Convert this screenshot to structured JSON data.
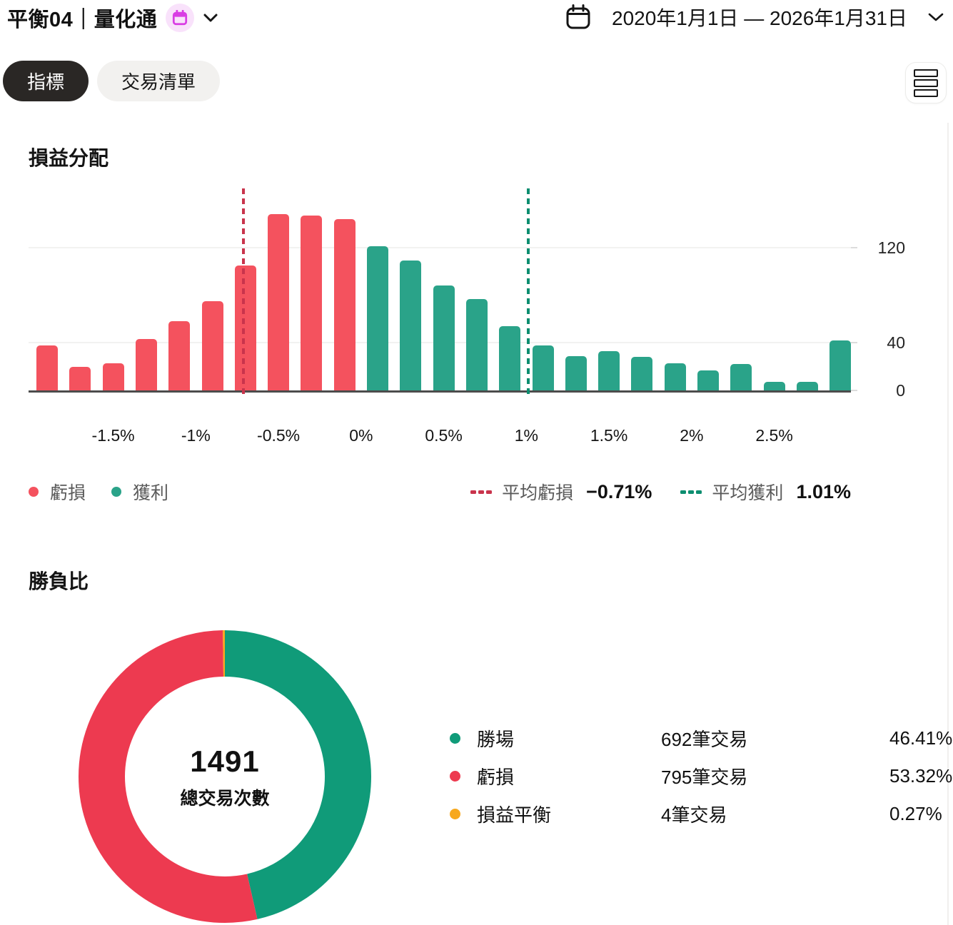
{
  "header": {
    "title": "平衡04｜量化通",
    "date_range": "2020年1月1日 — 2026年1月31日"
  },
  "tabs": [
    {
      "label": "指標",
      "active": true
    },
    {
      "label": "交易清單",
      "active": false
    }
  ],
  "icons": {
    "header_badge": "calendar-icon",
    "date_picker": "calendar-icon",
    "expand": "chevron-down-icon",
    "view_toggle": "list-icon"
  },
  "colors": {
    "loss_bar": "#f4525e",
    "profit_bar": "#2aa389",
    "avg_loss_line": "#c9344c",
    "avg_profit_line": "#0d8e70"
  },
  "pnl": {
    "section_title": "損益分配",
    "chart_data": {
      "type": "bar",
      "title": "損益分配",
      "x_unit": "%",
      "x_start": -1.9,
      "x_step": 0.2,
      "values": [
        38,
        20,
        23,
        43,
        58,
        75,
        105,
        148,
        147,
        144,
        121,
        109,
        88,
        77,
        54,
        38,
        29,
        33,
        28,
        23,
        17,
        22,
        7,
        7,
        42
      ],
      "loss_bin_count": 10,
      "x_tick_values": [
        -1.5,
        -1,
        -0.5,
        0,
        0.5,
        1,
        1.5,
        2,
        2.5
      ],
      "x_tick_labels": [
        "-1.5%",
        "-1%",
        "-0.5%",
        "0%",
        "0.5%",
        "1%",
        "1.5%",
        "2%",
        "2.5%"
      ],
      "y_ticks": [
        0,
        40,
        120
      ],
      "ylim": [
        0,
        169
      ],
      "avg_loss": -0.71,
      "avg_profit": 1.01
    },
    "legend": {
      "loss": "虧損",
      "profit": "獲利",
      "avg_loss_label": "平均虧損",
      "avg_loss_value": "−0.71%",
      "avg_profit_label": "平均獲利",
      "avg_profit_value": "1.01%"
    }
  },
  "winloss": {
    "section_title": "勝負比",
    "total_value": "1491",
    "total_label": "總交易次數",
    "chart_data": {
      "type": "pie",
      "title": "勝負比",
      "center_total": 1491,
      "legend_position": "right",
      "slices": [
        {
          "label": "勝場",
          "trades": "692筆交易",
          "percent": 46.41,
          "percent_text": "46.41%",
          "color": "#109b79"
        },
        {
          "label": "虧損",
          "trades": "795筆交易",
          "percent": 53.32,
          "percent_text": "53.32%",
          "color": "#ed3a50"
        },
        {
          "label": "損益平衡",
          "trades": "4筆交易",
          "percent": 0.27,
          "percent_text": "0.27%",
          "color": "#f7a81d"
        }
      ]
    }
  }
}
